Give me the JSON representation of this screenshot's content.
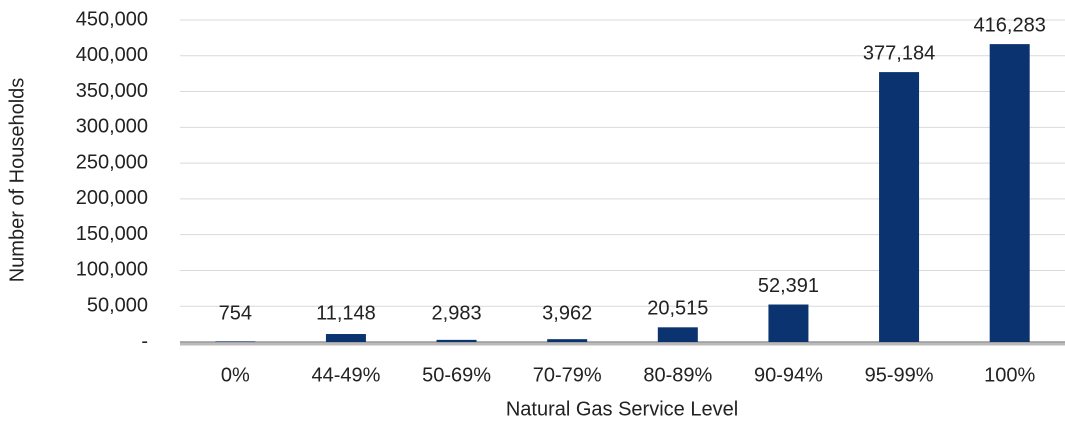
{
  "chart_data": {
    "type": "bar",
    "x_label": "Natural Gas Service Level",
    "y_label": "Number of Households",
    "categories": [
      "0%",
      "44-49%",
      "50-69%",
      "70-79%",
      "80-89%",
      "90-94%",
      "95-99%",
      "100%"
    ],
    "values": [
      754,
      11148,
      2983,
      3962,
      20515,
      52391,
      377184,
      416283
    ],
    "value_labels": [
      "754",
      "11,148",
      "2,983",
      "3,962",
      "20,515",
      "52,391",
      "377,184",
      "416,283"
    ],
    "color": "#0a3370",
    "ylim": [
      0,
      450000
    ],
    "yticks": [
      {
        "value": 0,
        "label": "-"
      },
      {
        "value": 50000,
        "label": "50,000"
      },
      {
        "value": 100000,
        "label": "100,000"
      },
      {
        "value": 150000,
        "label": "150,000"
      },
      {
        "value": 200000,
        "label": "200,000"
      },
      {
        "value": 250000,
        "label": "250,000"
      },
      {
        "value": 300000,
        "label": "300,000"
      },
      {
        "value": 350000,
        "label": "350,000"
      },
      {
        "value": 400000,
        "label": "400,000"
      },
      {
        "value": 450000,
        "label": "450,000"
      }
    ],
    "grid": true
  }
}
